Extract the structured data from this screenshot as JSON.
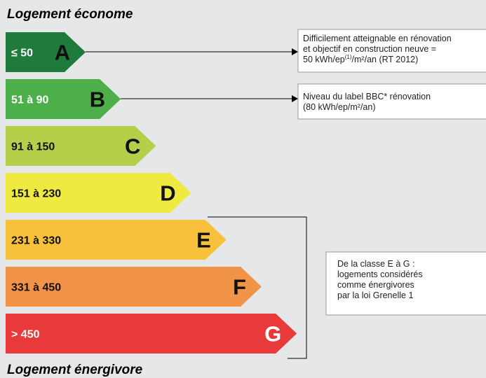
{
  "top_label": "Logement économe",
  "bottom_label": "Logement énergivore",
  "classes": [
    {
      "range": "≤ 50",
      "letter": "A",
      "color": "#1e7b3c"
    },
    {
      "range": "51 à 90",
      "letter": "B",
      "color": "#4daf4a"
    },
    {
      "range": "91 à 150",
      "letter": "C",
      "color": "#b6cf4b"
    },
    {
      "range": "151 à 230",
      "letter": "D",
      "color": "#eeea41"
    },
    {
      "range": "231 à 330",
      "letter": "E",
      "color": "#f8c13c"
    },
    {
      "range": "331 à 450",
      "letter": "F",
      "color": "#f29447"
    },
    {
      "range": "> 450",
      "letter": "G",
      "color": "#e83a3b"
    }
  ],
  "notes": {
    "a": {
      "line1": "Difficilement atteignable en rénovation",
      "line2": "et objectif en construction neuve =",
      "line3_start": "50 kWh/ep",
      "line3_sup": "(1)",
      "line3_end": "/m²/an (RT 2012)"
    },
    "b": {
      "line1": "Niveau du label BBC* rénovation",
      "line2": "(80 kWh/ep/m²/an)"
    },
    "eg": {
      "line1": "De la classe E à G :",
      "line2": "logements considérés",
      "line3": "comme énergivores",
      "line4": "par la loi Grenelle 1"
    }
  }
}
